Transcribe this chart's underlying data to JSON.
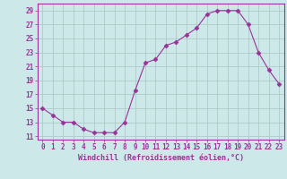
{
  "x": [
    0,
    1,
    2,
    3,
    4,
    5,
    6,
    7,
    8,
    9,
    10,
    11,
    12,
    13,
    14,
    15,
    16,
    17,
    18,
    19,
    20,
    21,
    22,
    23
  ],
  "y": [
    15,
    14,
    13,
    13,
    12,
    11.5,
    11.5,
    11.5,
    13,
    17.5,
    21.5,
    22,
    24,
    24.5,
    25.5,
    26.5,
    28.5,
    29,
    29,
    29,
    27,
    23,
    20.5,
    18.5
  ],
  "line_color": "#993399",
  "marker": "D",
  "marker_size": 2.5,
  "xlim": [
    -0.5,
    23.5
  ],
  "ylim": [
    10.5,
    30
  ],
  "yticks": [
    11,
    13,
    15,
    17,
    19,
    21,
    23,
    25,
    27,
    29
  ],
  "xticks": [
    0,
    1,
    2,
    3,
    4,
    5,
    6,
    7,
    8,
    9,
    10,
    11,
    12,
    13,
    14,
    15,
    16,
    17,
    18,
    19,
    20,
    21,
    22,
    23
  ],
  "xlabel": "Windchill (Refroidissement éolien,°C)",
  "bg_color": "#cce8e8",
  "grid_color": "#b0c8c8",
  "axis_color": "#993399",
  "label_fontsize": 5.5,
  "xlabel_fontsize": 6.0
}
